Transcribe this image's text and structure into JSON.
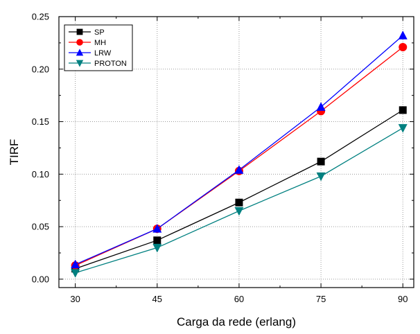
{
  "chart_data": {
    "type": "line",
    "title": "",
    "xlabel": "Carga da rede (erlang)",
    "ylabel": "TIRF",
    "x": [
      30,
      45,
      60,
      75,
      90
    ],
    "xticks": [
      30,
      45,
      60,
      75,
      90
    ],
    "xlim": [
      27,
      92
    ],
    "yticks": [
      0.0,
      0.05,
      0.1,
      0.15,
      0.2,
      0.25
    ],
    "ytick_labels": [
      "0.00",
      "0.05",
      "0.10",
      "0.15",
      "0.20",
      "0.25"
    ],
    "ylim": [
      -0.008,
      0.25
    ],
    "grid": true,
    "legend_position": "top-left",
    "series": [
      {
        "name": "SP",
        "color": "#000000",
        "marker": "square",
        "values": [
          0.01,
          0.037,
          0.073,
          0.112,
          0.161
        ]
      },
      {
        "name": "MH",
        "color": "#ff0000",
        "marker": "circle",
        "values": [
          0.013,
          0.048,
          0.103,
          0.16,
          0.221
        ]
      },
      {
        "name": "LRW",
        "color": "#0000ff",
        "marker": "triangle-up",
        "values": [
          0.014,
          0.048,
          0.104,
          0.164,
          0.232
        ]
      },
      {
        "name": "PROTON",
        "color": "#008080",
        "marker": "triangle-down",
        "values": [
          0.006,
          0.03,
          0.065,
          0.098,
          0.144
        ]
      }
    ]
  }
}
